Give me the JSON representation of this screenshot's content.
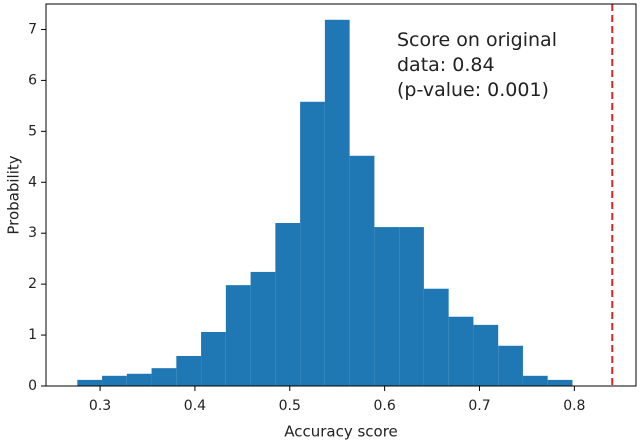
{
  "chart_data": {
    "type": "histogram",
    "xlabel": "Accuracy score",
    "ylabel": "Probability",
    "bins": [
      0.276,
      0.3021,
      0.3282,
      0.3543,
      0.3804,
      0.4065,
      0.4326,
      0.4587,
      0.4848,
      0.5109,
      0.537,
      0.5631,
      0.5892,
      0.6153,
      0.6414,
      0.6675,
      0.6936,
      0.7197,
      0.7458,
      0.7719,
      0.798
    ],
    "counts": [
      0.12,
      0.2,
      0.24,
      0.35,
      0.59,
      1.06,
      1.98,
      2.24,
      3.2,
      5.58,
      7.19,
      4.52,
      3.12,
      3.12,
      1.91,
      1.36,
      1.2,
      0.79,
      0.2,
      0.12
    ],
    "color": "#1f77b4",
    "score_line": {
      "value": 0.84,
      "color": "#d62728"
    },
    "annotation": [
      "Score on original",
      "data: 0.84",
      "(p-value: 0.001)"
    ],
    "xlim": [
      0.243,
      0.865
    ],
    "ylim": [
      0,
      7.5
    ],
    "xticks": [
      0.3,
      0.4,
      0.5,
      0.6,
      0.7,
      0.8
    ],
    "yticks": [
      0,
      1,
      2,
      3,
      4,
      5,
      6,
      7
    ]
  }
}
